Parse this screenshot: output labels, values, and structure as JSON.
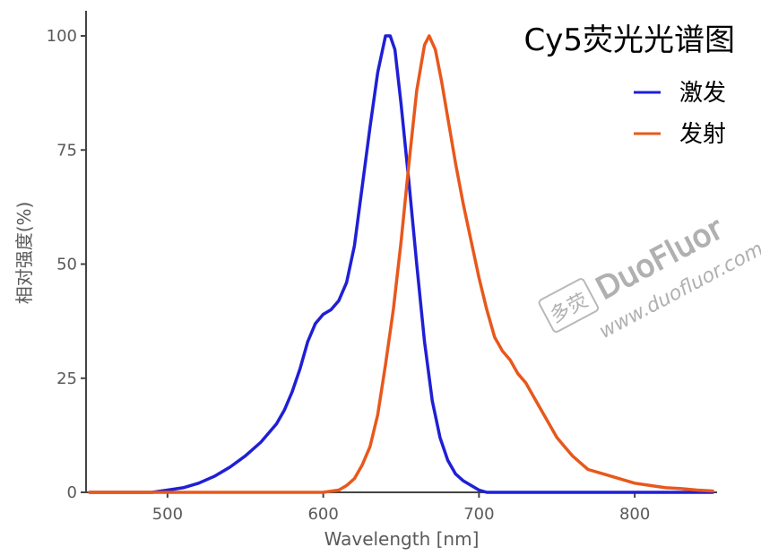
{
  "chart_data": {
    "type": "line",
    "title": "Cy5荧光光谱图",
    "xlabel": "Wavelength [nm]",
    "ylabel": "相对强度(%)",
    "xlim": [
      450,
      850
    ],
    "ylim": [
      0,
      105
    ],
    "xticks": [
      500,
      600,
      700,
      800
    ],
    "yticks": [
      0,
      25,
      50,
      75,
      100
    ],
    "legend_position": "top-right",
    "grid": false,
    "series": [
      {
        "name": "激发",
        "color": "#1f1fd6",
        "points": [
          [
            450,
            0
          ],
          [
            490,
            0
          ],
          [
            500,
            0.5
          ],
          [
            510,
            1
          ],
          [
            520,
            2
          ],
          [
            530,
            3.5
          ],
          [
            540,
            5.5
          ],
          [
            550,
            8
          ],
          [
            560,
            11
          ],
          [
            570,
            15
          ],
          [
            575,
            18
          ],
          [
            580,
            22
          ],
          [
            585,
            27
          ],
          [
            590,
            33
          ],
          [
            595,
            37
          ],
          [
            600,
            39
          ],
          [
            605,
            40
          ],
          [
            610,
            42
          ],
          [
            615,
            46
          ],
          [
            620,
            54
          ],
          [
            625,
            67
          ],
          [
            630,
            80
          ],
          [
            635,
            92
          ],
          [
            640,
            100
          ],
          [
            643,
            100
          ],
          [
            646,
            97
          ],
          [
            650,
            85
          ],
          [
            655,
            68
          ],
          [
            660,
            50
          ],
          [
            665,
            33
          ],
          [
            670,
            20
          ],
          [
            675,
            12
          ],
          [
            680,
            7
          ],
          [
            685,
            4
          ],
          [
            690,
            2.5
          ],
          [
            695,
            1.5
          ],
          [
            700,
            0.5
          ],
          [
            705,
            0
          ],
          [
            850,
            0
          ]
        ]
      },
      {
        "name": "发射",
        "color": "#e8581c",
        "points": [
          [
            450,
            0
          ],
          [
            600,
            0
          ],
          [
            610,
            0.5
          ],
          [
            615,
            1.5
          ],
          [
            620,
            3
          ],
          [
            625,
            6
          ],
          [
            630,
            10
          ],
          [
            635,
            17
          ],
          [
            640,
            28
          ],
          [
            645,
            40
          ],
          [
            650,
            55
          ],
          [
            655,
            72
          ],
          [
            660,
            88
          ],
          [
            665,
            98
          ],
          [
            668,
            100
          ],
          [
            672,
            97
          ],
          [
            676,
            90
          ],
          [
            680,
            82
          ],
          [
            685,
            72
          ],
          [
            690,
            63
          ],
          [
            695,
            55
          ],
          [
            700,
            47
          ],
          [
            705,
            40
          ],
          [
            710,
            34
          ],
          [
            715,
            31
          ],
          [
            720,
            29
          ],
          [
            725,
            26
          ],
          [
            730,
            24
          ],
          [
            735,
            21
          ],
          [
            740,
            18
          ],
          [
            745,
            15
          ],
          [
            750,
            12
          ],
          [
            755,
            10
          ],
          [
            760,
            8
          ],
          [
            765,
            6.5
          ],
          [
            770,
            5
          ],
          [
            780,
            4
          ],
          [
            790,
            3
          ],
          [
            800,
            2
          ],
          [
            810,
            1.5
          ],
          [
            820,
            1
          ],
          [
            830,
            0.8
          ],
          [
            840,
            0.5
          ],
          [
            850,
            0.3
          ]
        ]
      }
    ]
  },
  "watermark": {
    "brand": "DuoFluor",
    "url": "www.duofluor.com",
    "logo_text": "多荧"
  }
}
